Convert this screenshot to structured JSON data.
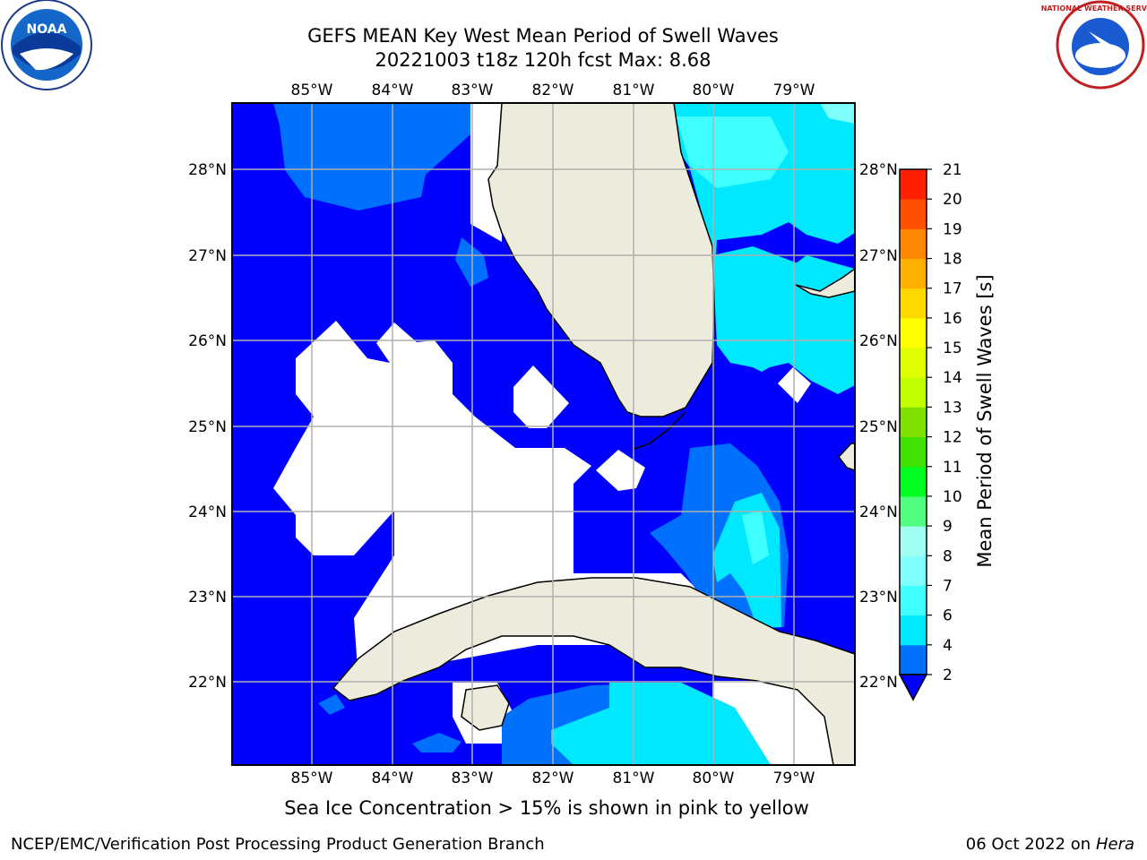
{
  "header": {
    "title_line1": "GEFS MEAN Key West Mean Period of Swell Waves",
    "title_line2": "20221003 t18z 120h fcst   Max: 8.68"
  },
  "logos": {
    "left": {
      "name": "noaa-logo",
      "text": "NOAA"
    },
    "right": {
      "name": "nws-logo",
      "text": "NATIONAL WEATHER SERVICE"
    }
  },
  "map": {
    "lon_ticks": [
      "85°W",
      "84°W",
      "83°W",
      "82°W",
      "81°W",
      "80°W",
      "79°W"
    ],
    "lat_ticks": [
      "28°N",
      "27°N",
      "26°N",
      "25°N",
      "24°N",
      "23°N",
      "22°N"
    ]
  },
  "colorbar": {
    "label": "Mean Period of Swell Waves [s]",
    "ticks": [
      "2",
      "4",
      "6",
      "7",
      "8",
      "9",
      "10",
      "11",
      "12",
      "13",
      "14",
      "15",
      "16",
      "17",
      "18",
      "19",
      "20",
      "21"
    ],
    "colors": [
      "#0000ff",
      "#0070ff",
      "#00e8ff",
      "#40ffff",
      "#80ffff",
      "#a0fff0",
      "#50ff80",
      "#00ff20",
      "#40e000",
      "#80e000",
      "#c0ff00",
      "#e0ff00",
      "#ffff00",
      "#ffd800",
      "#ffb000",
      "#ff8800",
      "#ff5000",
      "#ff2000",
      "#ff0000"
    ]
  },
  "footer": {
    "note": "Sea Ice Concentration > 15% is shown in pink to yellow",
    "credit": "NCEP/EMC/Verification Post Processing Product Generation Branch",
    "date": "06 Oct 2022 on",
    "machine": "Hera"
  }
}
